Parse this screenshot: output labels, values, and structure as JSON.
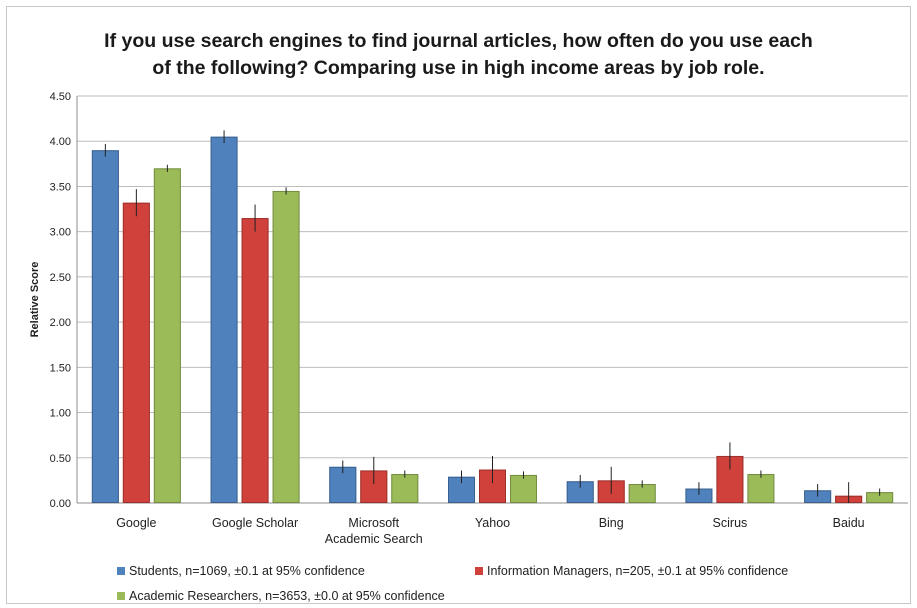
{
  "chart_data": {
    "type": "bar",
    "title_lines": [
      "If you use search engines to find journal articles, how often do you use each",
      "of the following? Comparing use in high income areas by job role."
    ],
    "xlabel": "",
    "ylabel": "Relative Score",
    "ylim": [
      0,
      4.5
    ],
    "yticks": [
      "0.00",
      "0.50",
      "1.00",
      "1.50",
      "2.00",
      "2.50",
      "3.00",
      "3.50",
      "4.00",
      "4.50"
    ],
    "grid": true,
    "legend_position": "bottom",
    "categories": [
      [
        "Google"
      ],
      [
        "Google Scholar"
      ],
      [
        "Microsoft",
        "Academic Search"
      ],
      [
        "Yahoo"
      ],
      [
        "Bing"
      ],
      [
        "Scirus"
      ],
      [
        "Baidu"
      ]
    ],
    "series": [
      {
        "name": "Students, n=1069, ±0.1 at 95% confidence",
        "color": "#4f81bd",
        "values": [
          3.9,
          4.05,
          0.4,
          0.29,
          0.24,
          0.16,
          0.14
        ],
        "error": [
          0.07,
          0.07,
          0.07,
          0.07,
          0.07,
          0.07,
          0.07
        ]
      },
      {
        "name": "Information Managers, n=205, ±0.1 at 95% confidence",
        "color": "#d0413c",
        "values": [
          3.32,
          3.15,
          0.36,
          0.37,
          0.25,
          0.52,
          0.08
        ],
        "error": [
          0.15,
          0.15,
          0.15,
          0.15,
          0.15,
          0.15,
          0.15
        ]
      },
      {
        "name": "Academic Researchers, n=3653, ±0.0 at 95% confidence",
        "color": "#9bbb59",
        "values": [
          3.7,
          3.45,
          0.32,
          0.31,
          0.21,
          0.32,
          0.12
        ],
        "error": [
          0.04,
          0.04,
          0.04,
          0.04,
          0.04,
          0.04,
          0.04
        ]
      }
    ]
  }
}
